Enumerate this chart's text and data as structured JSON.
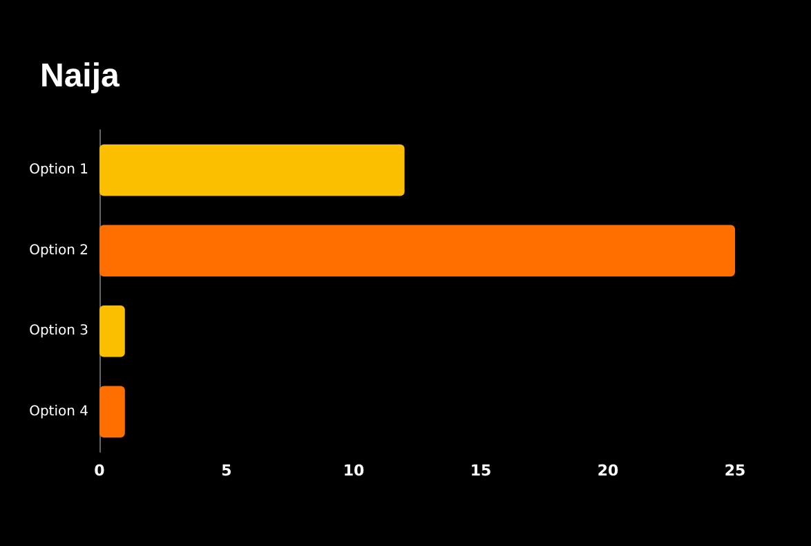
{
  "chart_data": {
    "type": "bar",
    "orientation": "horizontal",
    "title": "Naija",
    "categories": [
      "Option 1",
      "Option 2",
      "Option 3",
      "Option 4"
    ],
    "values": [
      12,
      25,
      1,
      1
    ],
    "colors": [
      "#fcbf00",
      "#ff6f00",
      "#fcbf00",
      "#ff6f00"
    ],
    "xlim": [
      0,
      25
    ],
    "xticks": [
      0,
      5,
      10,
      15,
      20,
      25
    ],
    "grid": false
  }
}
